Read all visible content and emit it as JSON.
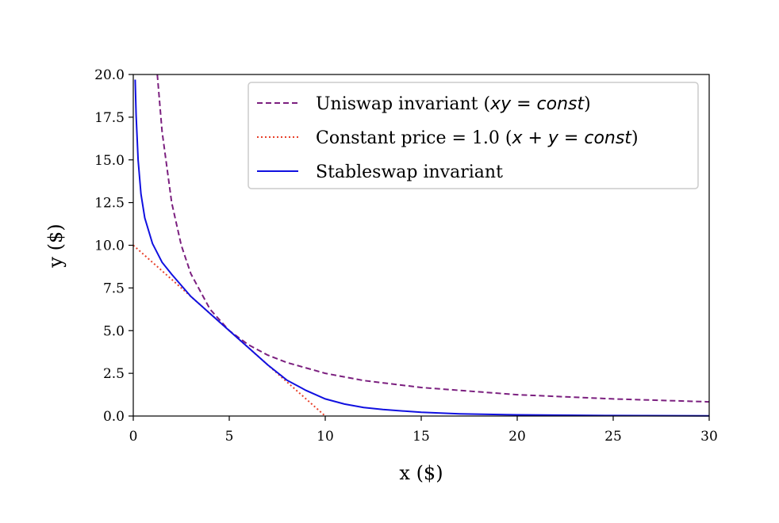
{
  "chart_data": {
    "type": "line",
    "xlabel": "x ($)",
    "ylabel": "y ($)",
    "xlim": [
      0,
      30
    ],
    "ylim": [
      0,
      20
    ],
    "xticks": [
      "0",
      "5",
      "10",
      "15",
      "20",
      "25",
      "30"
    ],
    "yticks": [
      "0.0",
      "2.5",
      "5.0",
      "7.5",
      "10.0",
      "12.5",
      "15.0",
      "17.5",
      "20.0"
    ],
    "grid": false,
    "legend_position": "top-right",
    "series": [
      {
        "name": "Uniswap invariant (xy = const)",
        "legend_plain": "Uniswap invariant (",
        "legend_math": "xy = const",
        "legend_close": ")",
        "color": "#7b1f7f",
        "style": "dashed",
        "x": [
          1.25,
          1.5,
          2,
          2.5,
          3,
          4,
          5,
          6,
          7,
          8,
          10,
          12,
          15,
          20,
          25,
          30
        ],
        "y": [
          20,
          16.67,
          12.5,
          10,
          8.33,
          6.25,
          5,
          4.17,
          3.57,
          3.13,
          2.5,
          2.08,
          1.67,
          1.25,
          1.0,
          0.83
        ]
      },
      {
        "name": "Constant price = 1.0 (x + y = const)",
        "legend_plain": "Constant price = 1.0 (",
        "legend_math": "x + y = const",
        "legend_close": ")",
        "color": "#e8402a",
        "style": "dotted",
        "x": [
          0,
          10
        ],
        "y": [
          10,
          0
        ]
      },
      {
        "name": "Stableswap invariant",
        "legend_plain": "Stableswap invariant",
        "legend_math": "",
        "legend_close": "",
        "color": "#1010e0",
        "style": "solid",
        "x": [
          0.1,
          0.15,
          0.25,
          0.4,
          0.6,
          1.0,
          1.5,
          2.0,
          3.0,
          4.0,
          5.0,
          6.0,
          7.0,
          8.0,
          9.0,
          10.0,
          11.0,
          12.0,
          13.0,
          15.0,
          17.0,
          20.0,
          25.0,
          30.0
        ],
        "y": [
          19.7,
          17.6,
          15.0,
          13.0,
          11.6,
          10.1,
          9.0,
          8.3,
          7.0,
          6.0,
          5.0,
          4.0,
          3.0,
          2.1,
          1.5,
          1.0,
          0.7,
          0.5,
          0.38,
          0.22,
          0.13,
          0.07,
          0.03,
          0.01
        ]
      }
    ]
  }
}
